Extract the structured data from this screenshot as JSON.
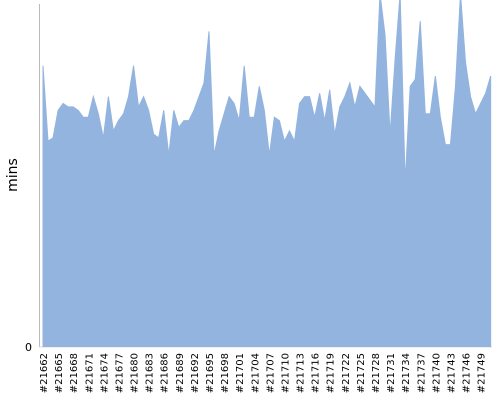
{
  "chart_data": {
    "type": "area",
    "y_label": "mins",
    "categories": [
      "#21662",
      null,
      null,
      "#21665",
      null,
      null,
      "#21668",
      null,
      null,
      "#21671",
      null,
      null,
      "#21674",
      null,
      null,
      "#21677",
      null,
      null,
      "#21680",
      null,
      null,
      "#21683",
      null,
      null,
      "#21686",
      null,
      null,
      "#21689",
      null,
      null,
      "#21692",
      null,
      null,
      "#21695",
      null,
      null,
      "#21698",
      null,
      null,
      "#21701",
      null,
      null,
      "#21704",
      null,
      null,
      "#21707",
      null,
      null,
      "#21710",
      null,
      null,
      "#21713",
      null,
      null,
      "#21716",
      null,
      null,
      "#21719",
      null,
      null,
      "#21722",
      null,
      null,
      "#21725",
      null,
      null,
      "#21728",
      null,
      null,
      "#21731",
      null,
      null,
      "#21734",
      null,
      null,
      "#21737",
      null,
      null,
      "#21740",
      null,
      null,
      "#21743",
      null,
      null,
      "#21746",
      null,
      null,
      "#21749",
      null,
      null
    ],
    "values": [
      82,
      60,
      61,
      69,
      71,
      70,
      70,
      69,
      67,
      67,
      73,
      68,
      61,
      73,
      63,
      66,
      68,
      73,
      82,
      70,
      73,
      69,
      62,
      61,
      69,
      56,
      69,
      64,
      66,
      66,
      69,
      73,
      77,
      92,
      56,
      63,
      68,
      73,
      71,
      66,
      82,
      67,
      67,
      76,
      69,
      56,
      67,
      66,
      60,
      63,
      60,
      71,
      73,
      73,
      67,
      74,
      66,
      75,
      62,
      70,
      73,
      77,
      70,
      76,
      74,
      72,
      70,
      103,
      91,
      62,
      84,
      103,
      48,
      76,
      78,
      95,
      68,
      68,
      79,
      67,
      59,
      59,
      76,
      103,
      83,
      73,
      68,
      71,
      74,
      79
    ],
    "color": "#92b4de",
    "ylim": [
      0,
      100
    ],
    "yticks": [
      0
    ]
  }
}
